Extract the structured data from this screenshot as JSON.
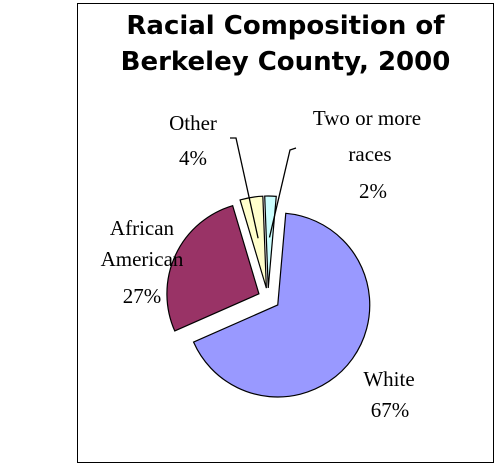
{
  "chart_data": {
    "type": "pie",
    "title_lines": [
      "Racial Composition of",
      "Berkeley County, 2000"
    ],
    "slices": [
      {
        "label_lines": [
          "White"
        ],
        "pct_text": "67%",
        "value": 67,
        "color": "#9999ff"
      },
      {
        "label_lines": [
          "African",
          "American"
        ],
        "pct_text": "27%",
        "value": 27,
        "color": "#993366"
      },
      {
        "label_lines": [
          "Other"
        ],
        "pct_text": "4%",
        "value": 4,
        "color": "#ffffcc"
      },
      {
        "label_lines": [
          "Two or more",
          "races"
        ],
        "pct_text": "2%",
        "value": 2,
        "color": "#ccffff"
      }
    ],
    "exploded": true,
    "legend": "none"
  }
}
